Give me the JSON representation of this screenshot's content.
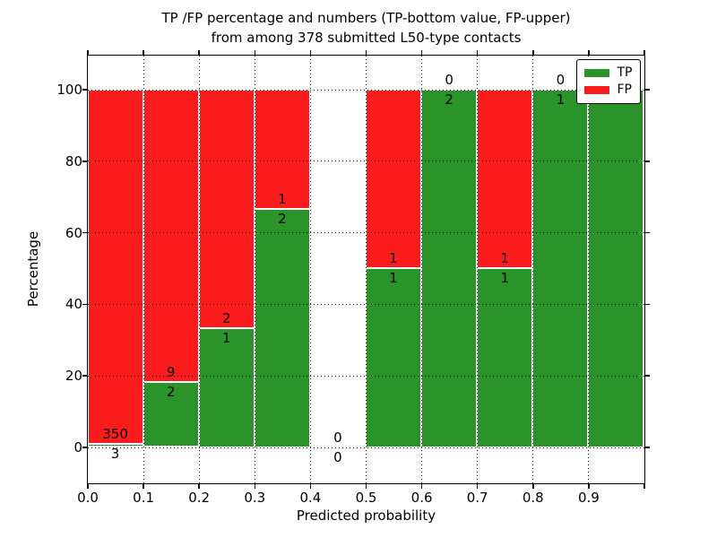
{
  "title": {
    "line1": "TP /FP percentage and numbers (TP-bottom value, FP-upper)",
    "line2": "from among 378 submitted L50-type contacts"
  },
  "x_axis": {
    "label": "Predicted probability",
    "tick_labels": [
      "0.0",
      "0.1",
      "0.2",
      "0.3",
      "0.4",
      "0.5",
      "0.6",
      "0.7",
      "0.8",
      "0.9"
    ],
    "tick_values": [
      0,
      0.1,
      0.2,
      0.3,
      0.4,
      0.5,
      0.6,
      0.7,
      0.8,
      0.9
    ]
  },
  "y_axis": {
    "label": "Percentage",
    "tick_labels": [
      "0",
      "20",
      "40",
      "60",
      "80",
      "100"
    ],
    "tick_values": [
      0,
      20,
      40,
      60,
      80,
      100
    ]
  },
  "legend": {
    "position": "upper right",
    "items": [
      {
        "label": "TP",
        "color": "#2a942a"
      },
      {
        "label": "FP",
        "color": "#fb1d1d"
      }
    ]
  },
  "colors": {
    "tp": "#2a942a",
    "fp": "#fb1d1d",
    "grid": "#000000",
    "frame": "#000000",
    "background": "#ffffff"
  },
  "chart_data": {
    "type": "bar",
    "stacked": true,
    "title": "TP /FP percentage and numbers (TP-bottom value, FP-upper) from among 378 submitted L50-type contacts",
    "xlabel": "Predicted probability",
    "ylabel": "Percentage",
    "total_contacts": 378,
    "bin_edges": [
      0.0,
      0.1,
      0.2,
      0.3,
      0.4,
      0.5,
      0.6,
      0.7,
      0.8,
      0.9,
      1.0
    ],
    "categories": [
      "0.0-0.1",
      "0.1-0.2",
      "0.2-0.3",
      "0.3-0.4",
      "0.4-0.5",
      "0.5-0.6",
      "0.6-0.7",
      "0.7-0.8",
      "0.8-0.9",
      "0.9-1.0"
    ],
    "series": [
      {
        "name": "TP",
        "color": "#2a942a",
        "counts": [
          3,
          2,
          1,
          2,
          0,
          1,
          2,
          1,
          1,
          1
        ],
        "percent": [
          0.85,
          18.18,
          33.33,
          66.67,
          0,
          50,
          100,
          50,
          100,
          100
        ]
      },
      {
        "name": "FP",
        "color": "#fb1d1d",
        "counts": [
          350,
          9,
          2,
          1,
          0,
          1,
          0,
          1,
          0,
          0
        ],
        "percent": [
          99.15,
          81.82,
          66.67,
          33.33,
          0,
          50,
          0,
          50,
          0,
          0
        ]
      }
    ],
    "xlim": [
      0,
      1
    ],
    "ylim": [
      -10,
      110
    ],
    "grid": true,
    "gridline_x_values": [
      0.1,
      0.2,
      0.3,
      0.4,
      0.5,
      0.6,
      0.7,
      0.8,
      0.9
    ],
    "gridline_y_values": [
      0,
      20,
      40,
      60,
      80,
      100
    ],
    "legend_position": "upper right"
  }
}
